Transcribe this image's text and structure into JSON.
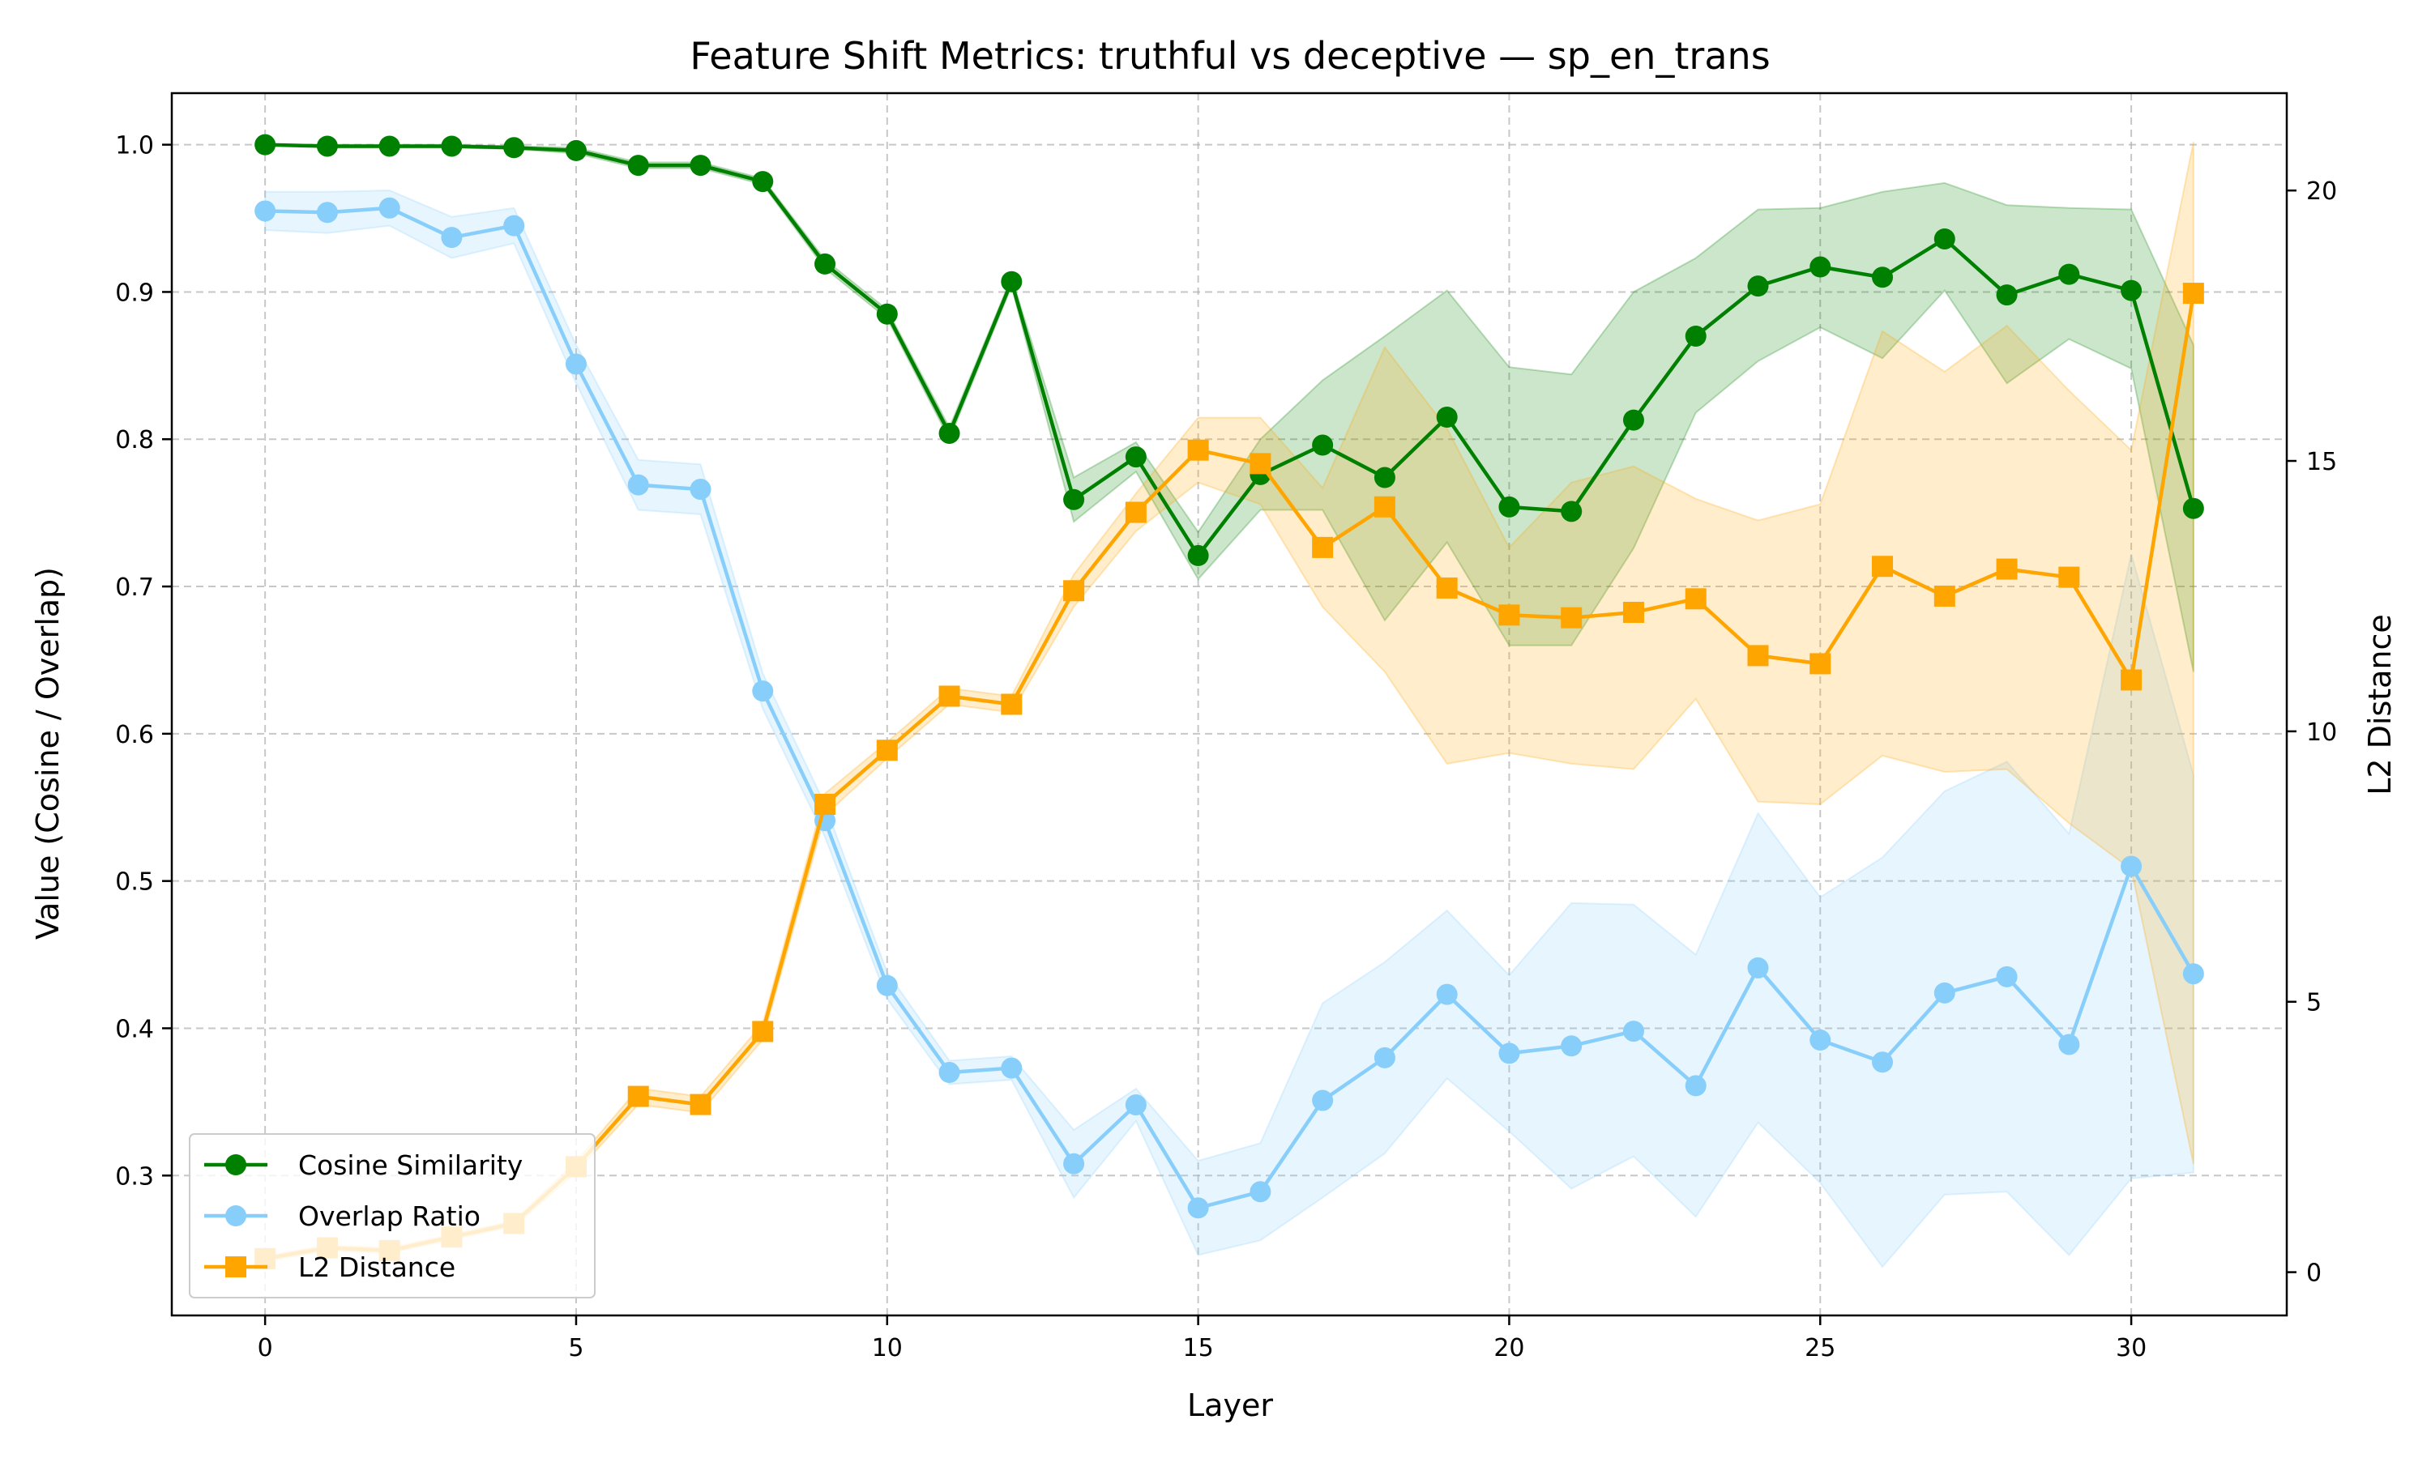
{
  "chart_data": {
    "type": "line",
    "title": "Feature Shift Metrics: truthful vs deceptive — sp_en_trans",
    "xlabel": "Layer",
    "ylabel": "Value (Cosine / Overlap)",
    "ylabel_right": "L2 Distance",
    "xlim": [
      -1.5,
      32.5
    ],
    "ylim": [
      0.205,
      1.035
    ],
    "ylim_right": [
      -0.8,
      21.8
    ],
    "x_ticks": [
      0,
      5,
      10,
      15,
      20,
      25,
      30
    ],
    "y_ticks": [
      0.3,
      0.4,
      0.5,
      0.6,
      0.7,
      0.8,
      0.9,
      1.0
    ],
    "y_right_ticks": [
      0,
      5,
      10,
      15,
      20
    ],
    "grid": true,
    "legend_position": "lower-left",
    "x": [
      0,
      1,
      2,
      3,
      4,
      5,
      6,
      7,
      8,
      9,
      10,
      11,
      12,
      13,
      14,
      15,
      16,
      17,
      18,
      19,
      20,
      21,
      22,
      23,
      24,
      25,
      26,
      27,
      28,
      29,
      30,
      31
    ],
    "series": [
      {
        "name": "Cosine Similarity",
        "axis": "left",
        "color": "#008000",
        "marker": "circle",
        "values": [
          1.0,
          0.999,
          0.999,
          0.999,
          0.998,
          0.996,
          0.986,
          0.986,
          0.975,
          0.919,
          0.885,
          0.804,
          0.907,
          0.759,
          0.788,
          0.721,
          0.776,
          0.796,
          0.774,
          0.815,
          0.754,
          0.751,
          0.813,
          0.87,
          0.904,
          0.917,
          0.91,
          0.936,
          0.898,
          0.912,
          0.901,
          0.753
        ],
        "lower": [
          1.0,
          0.998,
          0.998,
          0.998,
          0.997,
          0.994,
          0.984,
          0.984,
          0.973,
          0.916,
          0.882,
          0.8,
          0.904,
          0.744,
          0.778,
          0.705,
          0.752,
          0.752,
          0.677,
          0.73,
          0.66,
          0.66,
          0.726,
          0.818,
          0.853,
          0.876,
          0.855,
          0.901,
          0.838,
          0.868,
          0.848,
          0.642
        ],
        "upper": [
          1.0,
          1.0,
          1.0,
          1.0,
          0.999,
          0.998,
          0.988,
          0.988,
          0.977,
          0.922,
          0.888,
          0.808,
          0.91,
          0.774,
          0.798,
          0.737,
          0.8,
          0.84,
          0.87,
          0.901,
          0.849,
          0.844,
          0.9,
          0.923,
          0.956,
          0.957,
          0.968,
          0.974,
          0.959,
          0.957,
          0.956,
          0.864
        ]
      },
      {
        "name": "Overlap Ratio",
        "axis": "left",
        "color": "#87CEFA",
        "marker": "circle",
        "values": [
          0.955,
          0.954,
          0.957,
          0.937,
          0.945,
          0.851,
          0.769,
          0.766,
          0.629,
          0.541,
          0.429,
          0.37,
          0.373,
          0.308,
          0.348,
          0.278,
          0.289,
          0.351,
          0.38,
          0.423,
          0.383,
          0.388,
          0.398,
          0.361,
          0.441,
          0.392,
          0.377,
          0.424,
          0.435,
          0.389,
          0.51,
          0.437
        ],
        "lower": [
          0.942,
          0.94,
          0.945,
          0.923,
          0.933,
          0.838,
          0.752,
          0.749,
          0.617,
          0.53,
          0.42,
          0.362,
          0.365,
          0.285,
          0.337,
          0.246,
          0.256,
          0.285,
          0.315,
          0.366,
          0.33,
          0.291,
          0.313,
          0.272,
          0.336,
          0.295,
          0.238,
          0.287,
          0.289,
          0.246,
          0.298,
          0.302
        ],
        "upper": [
          0.968,
          0.968,
          0.969,
          0.951,
          0.957,
          0.864,
          0.786,
          0.783,
          0.641,
          0.552,
          0.438,
          0.378,
          0.381,
          0.331,
          0.359,
          0.31,
          0.322,
          0.417,
          0.445,
          0.48,
          0.436,
          0.485,
          0.484,
          0.45,
          0.546,
          0.489,
          0.516,
          0.561,
          0.581,
          0.532,
          0.722,
          0.572
        ]
      },
      {
        "name": "L2 Distance",
        "axis": "right",
        "color": "#FFA500",
        "marker": "square",
        "values": [
          0.25,
          0.45,
          0.4,
          0.65,
          0.9,
          1.95,
          3.25,
          3.1,
          4.45,
          8.65,
          9.65,
          10.65,
          10.5,
          12.6,
          14.05,
          15.2,
          14.95,
          13.4,
          14.15,
          12.65,
          12.15,
          12.1,
          12.2,
          12.45,
          11.4,
          11.25,
          13.05,
          12.5,
          13.0,
          12.85,
          10.95,
          18.1
        ],
        "lower": [
          0.2,
          0.4,
          0.35,
          0.6,
          0.85,
          1.85,
          3.1,
          2.95,
          4.3,
          8.45,
          9.5,
          10.5,
          10.35,
          12.3,
          13.7,
          14.6,
          14.2,
          12.3,
          11.1,
          9.4,
          9.6,
          9.4,
          9.3,
          10.6,
          8.7,
          8.65,
          9.55,
          9.25,
          9.3,
          8.3,
          7.45,
          2.0
        ],
        "upper": [
          0.3,
          0.5,
          0.45,
          0.7,
          0.95,
          2.05,
          3.4,
          3.25,
          4.6,
          8.85,
          9.8,
          10.8,
          10.65,
          12.9,
          14.4,
          15.8,
          15.8,
          14.5,
          17.1,
          15.6,
          13.4,
          14.6,
          14.9,
          14.3,
          13.9,
          14.2,
          17.4,
          16.65,
          17.5,
          16.3,
          15.2,
          20.9
        ]
      }
    ]
  }
}
